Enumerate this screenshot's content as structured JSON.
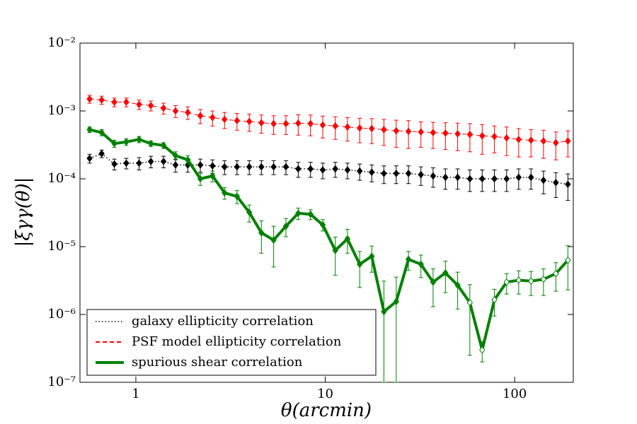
{
  "chart_data": {
    "type": "errorbar",
    "xlabel": "θ(arcmin)",
    "ylabel": "|ξγγ(θ)|",
    "log_x": true,
    "log_y": true,
    "xlim": [
      0.507,
      204
    ],
    "ylim": [
      1e-07,
      0.01
    ],
    "xticks": [
      1,
      10,
      100
    ],
    "yticks": [
      {
        "value": 1e-07,
        "label": "10⁻⁷"
      },
      {
        "value": 1e-06,
        "label": "10⁻⁶"
      },
      {
        "value": 1e-05,
        "label": "10⁻⁵"
      },
      {
        "value": 0.0001,
        "label": "10⁻⁴"
      },
      {
        "value": 0.001,
        "label": "10⁻³"
      },
      {
        "value": 0.01,
        "label": "10⁻²"
      }
    ],
    "legend": "lower left",
    "x": [
      0.57,
      0.66,
      0.77,
      0.89,
      1.04,
      1.2,
      1.4,
      1.62,
      1.88,
      2.19,
      2.54,
      2.94,
      3.42,
      3.97,
      4.6,
      5.34,
      6.2,
      7.2,
      8.36,
      9.7,
      11.3,
      13.1,
      15.2,
      17.6,
      20.4,
      23.7,
      27.5,
      32,
      37.1,
      43.1,
      50,
      58,
      67.4,
      78.2,
      90.7,
      105,
      122,
      142,
      165,
      191
    ],
    "series": [
      {
        "name": "galaxy ellipticity correlation",
        "color": "#000000",
        "linestyle": "dotted",
        "linewidth": 1.5,
        "values": [
          0.0002,
          0.000235,
          0.000165,
          0.00017,
          0.00017,
          0.00018,
          0.00018,
          0.00016,
          0.00016,
          0.00016,
          0.000155,
          0.00015,
          0.00015,
          0.00015,
          0.00015,
          0.00015,
          0.00015,
          0.00014,
          0.00014,
          0.000135,
          0.00014,
          0.000135,
          0.00013,
          0.000125,
          0.00012,
          0.00012,
          0.00012,
          0.000115,
          0.00011,
          0.000105,
          0.000105,
          0.0001,
          0.0001,
          0.0001,
          0.0001,
          0.000105,
          0.000105,
          9.5e-05,
          8.8e-05,
          8.3e-05
        ],
        "errors": [
          3e-05,
          3e-05,
          3e-05,
          3e-05,
          3.5e-05,
          3.5e-05,
          3.5e-05,
          3.5e-05,
          3.5e-05,
          3.5e-05,
          3.5e-05,
          3.5e-05,
          3.5e-05,
          3.5e-05,
          3.5e-05,
          3.5e-05,
          3.5e-05,
          3.5e-05,
          3.5e-05,
          3.5e-05,
          3.5e-05,
          3.5e-05,
          3.5e-05,
          3.5e-05,
          3.5e-05,
          3.5e-05,
          3.5e-05,
          3.5e-05,
          3.5e-05,
          3.5e-05,
          3.5e-05,
          3.5e-05,
          3.5e-05,
          3.5e-05,
          3.5e-05,
          3.5e-05,
          3.5e-05,
          3.5e-05,
          3.5e-05,
          3.5e-05
        ]
      },
      {
        "name": "PSF model ellipticity correlation",
        "color": "#ff0000",
        "linestyle": "dashed",
        "linewidth": 1,
        "values": [
          0.0015,
          0.00145,
          0.00135,
          0.00135,
          0.00125,
          0.0012,
          0.0011,
          0.001,
          0.00095,
          0.00085,
          0.0008,
          0.00075,
          0.00072,
          0.0007,
          0.00067,
          0.00065,
          0.00065,
          0.00066,
          0.00065,
          0.00062,
          0.0006,
          0.00058,
          0.00056,
          0.00055,
          0.00053,
          0.00051,
          0.0005,
          0.00049,
          0.00048,
          0.00047,
          0.00046,
          0.00045,
          0.00043,
          0.00042,
          0.0004,
          0.00038,
          0.00037,
          0.00036,
          0.00034,
          0.00036
        ],
        "errors": [
          0.0002,
          0.0002,
          0.0002,
          0.0002,
          0.0002,
          0.0002,
          0.0002,
          0.0002,
          0.0002,
          0.0002,
          0.0002,
          0.0002,
          0.0002,
          0.0002,
          0.0002,
          0.0002,
          0.0002,
          0.00022,
          0.00022,
          0.00022,
          0.00022,
          0.00022,
          0.00022,
          0.00022,
          0.00022,
          0.00022,
          0.00022,
          0.0002,
          0.0002,
          0.0002,
          0.0002,
          0.0002,
          0.0002,
          0.00018,
          0.00018,
          0.00017,
          0.00016,
          0.00016,
          0.00015,
          0.00015
        ]
      },
      {
        "name": "spurious shear correlation",
        "color": "#008000",
        "linestyle": "solid",
        "linewidth": 4,
        "values": [
          0.00053,
          0.00048,
          0.00033,
          0.00035,
          0.00038,
          0.00033,
          0.00031,
          0.00022,
          0.00019,
          0.0001,
          0.00011,
          6.2e-05,
          5.5e-05,
          3.2e-05,
          1.6e-05,
          1.25e-05,
          2e-05,
          3.1e-05,
          3e-05,
          2.1e-05,
          8.8e-06,
          1.3e-05,
          5.5e-06,
          7.2e-06,
          1.1e-06,
          1.55e-06,
          6.5e-06,
          5.5e-06,
          3e-06,
          4.1e-06,
          2.7e-06,
          1.5e-06,
          3e-07,
          1.65e-06,
          3e-06,
          3.2e-06,
          3.1e-06,
          3.3e-06,
          4e-06,
          6.3e-06
        ],
        "errors": [
          5e-05,
          5e-05,
          4e-05,
          4e-05,
          4e-05,
          3e-05,
          3e-05,
          3e-05,
          3e-05,
          2e-05,
          2e-05,
          1.2e-05,
          1.2e-05,
          9e-06,
          8e-06,
          7.5e-06,
          6e-06,
          6e-06,
          5e-06,
          4e-06,
          5e-06,
          5e-06,
          3e-06,
          3e-06,
          2e-06,
          2e-06,
          2e-06,
          2e-06,
          1.7e-06,
          2e-06,
          1.5e-06,
          1.25e-06,
          1e-07,
          7e-07,
          1e-06,
          1.2e-06,
          1.2e-06,
          1.4e-06,
          1.8e-06,
          4e-06
        ],
        "hollow_markers": [
          31,
          32,
          33,
          34,
          35,
          36,
          37,
          38,
          39
        ]
      }
    ]
  }
}
